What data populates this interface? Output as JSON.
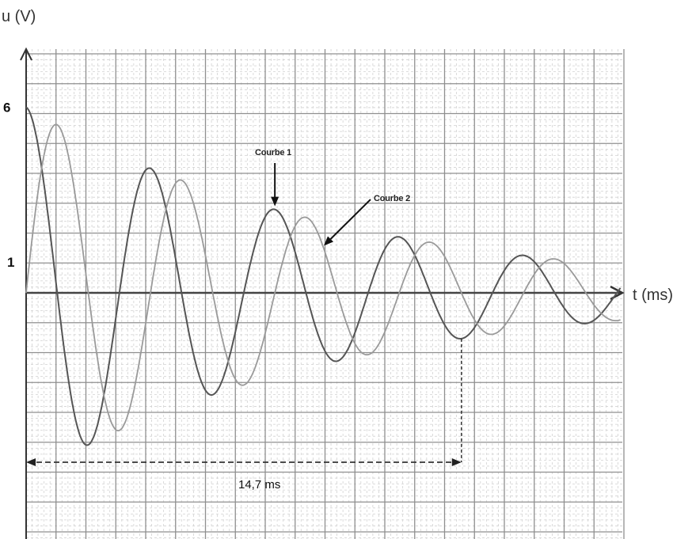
{
  "chart_data": {
    "type": "line",
    "title": "",
    "xlabel": "t (ms)",
    "ylabel": "u (V)",
    "xlim": [
      0,
      20.1
    ],
    "ylim": [
      -8.1,
      7.9
    ],
    "grid": true,
    "yticks": [
      {
        "value": 6,
        "label": "6"
      },
      {
        "value": 1,
        "label": "1"
      }
    ],
    "series": [
      {
        "name": "Courbe 1",
        "color": "#555555",
        "model": "damped_cosine",
        "amplitude": 6,
        "period_ms": 4.2,
        "decay_ms": 10.5,
        "phase_periods": 0
      },
      {
        "name": "Courbe 2",
        "color": "#9a9a9a",
        "model": "damped_cosine",
        "amplitude": 6,
        "period_ms": 4.2,
        "decay_ms": 10.5,
        "phase_periods": 0.25
      }
    ],
    "annotations": [
      {
        "text": "Courbe 1",
        "target": "Courbe 1",
        "at_t": 8.4
      },
      {
        "text": "Courbe 2",
        "target": "Courbe 2",
        "at_t": 10.0
      }
    ],
    "measurement": {
      "label": "14,7 ms",
      "from": 0,
      "to": 14.7
    }
  }
}
